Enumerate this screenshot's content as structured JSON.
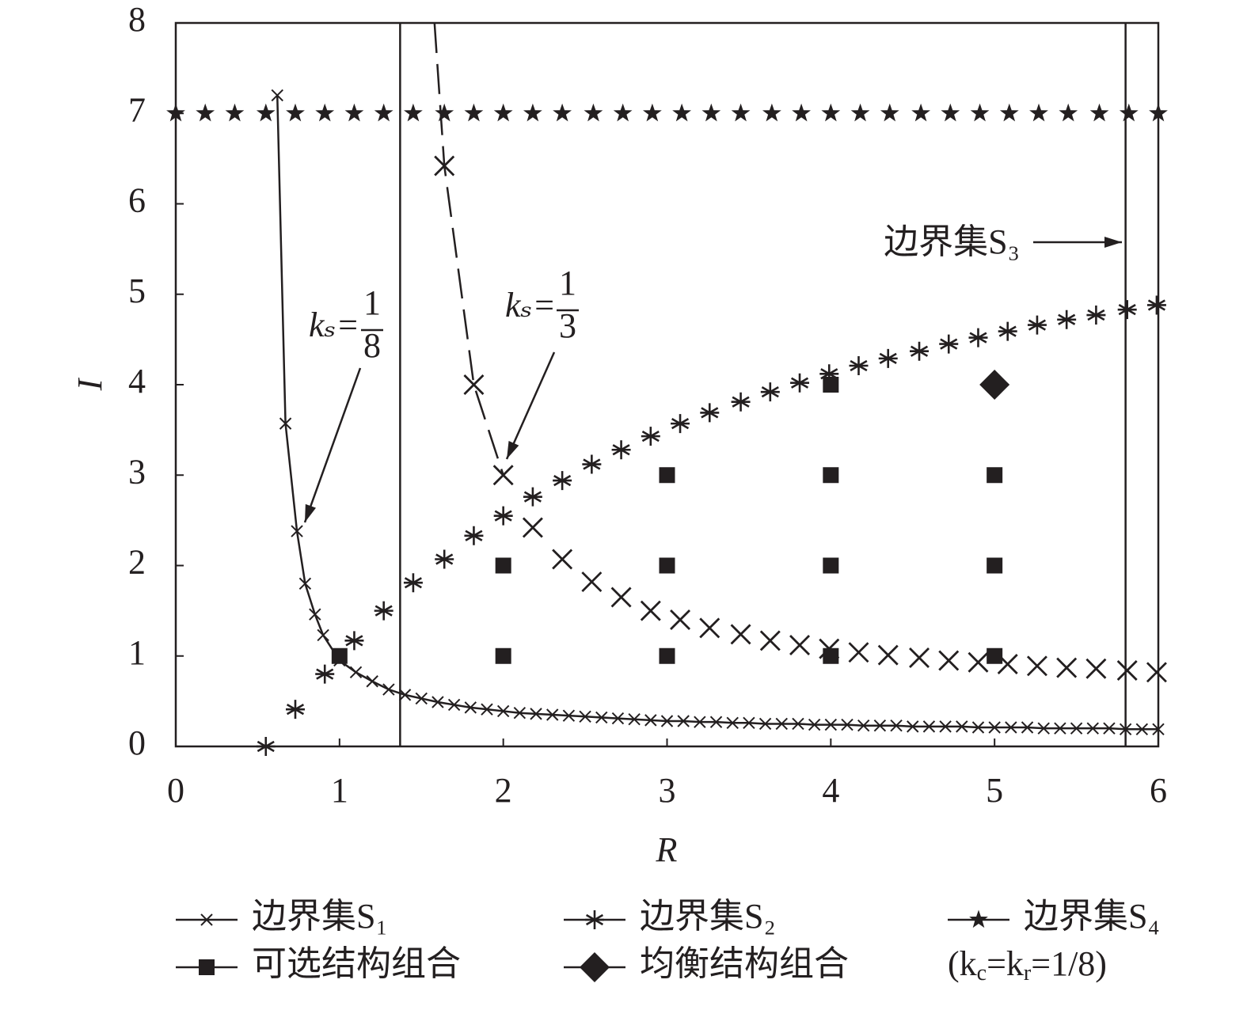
{
  "chart_data": {
    "type": "scatter",
    "x_label": "R",
    "y_label": "I",
    "xlim": [
      0,
      6
    ],
    "ylim": [
      0,
      8
    ],
    "xticks": [
      0,
      1,
      2,
      3,
      4,
      5,
      6
    ],
    "yticks": [
      0,
      1,
      2,
      3,
      4,
      5,
      6,
      7,
      8
    ],
    "color": "#231f20",
    "vlines": [
      1.37,
      5.8
    ],
    "series": [
      {
        "name": "边界集S₁",
        "marker": "x-small",
        "line": "solid",
        "x": [
          0.62,
          0.67,
          0.74,
          0.79,
          0.85,
          0.9,
          1.0,
          1.1,
          1.2,
          1.3,
          1.4,
          1.5,
          1.6,
          1.7,
          1.8,
          1.9,
          2.0,
          2.1,
          2.2,
          2.3,
          2.4,
          2.5,
          2.6,
          2.7,
          2.8,
          2.9,
          3.0,
          3.1,
          3.2,
          3.3,
          3.4,
          3.5,
          3.6,
          3.7,
          3.8,
          3.9,
          4.0,
          4.1,
          4.2,
          4.3,
          4.4,
          4.5,
          4.6,
          4.7,
          4.8,
          4.9,
          5.0,
          5.1,
          5.2,
          5.3,
          5.4,
          5.5,
          5.6,
          5.7,
          5.8,
          5.9,
          6.0
        ],
        "values": [
          7.2,
          3.57,
          2.38,
          1.8,
          1.46,
          1.23,
          0.95,
          0.82,
          0.72,
          0.63,
          0.57,
          0.53,
          0.49,
          0.46,
          0.43,
          0.41,
          0.39,
          0.37,
          0.36,
          0.35,
          0.34,
          0.33,
          0.32,
          0.31,
          0.3,
          0.29,
          0.28,
          0.28,
          0.27,
          0.27,
          0.26,
          0.26,
          0.25,
          0.25,
          0.25,
          0.24,
          0.24,
          0.24,
          0.23,
          0.23,
          0.23,
          0.22,
          0.22,
          0.22,
          0.22,
          0.21,
          0.21,
          0.21,
          0.21,
          0.2,
          0.2,
          0.2,
          0.2,
          0.2,
          0.19,
          0.19,
          0.19
        ]
      },
      {
        "marker": "x-large",
        "x": [
          1.64,
          1.82,
          2.0,
          2.18,
          2.36,
          2.54,
          2.72,
          2.9,
          3.08,
          3.26,
          3.45,
          3.63,
          3.81,
          3.99,
          4.17,
          4.35,
          4.54,
          4.72,
          4.9,
          5.08,
          5.26,
          5.44,
          5.62,
          5.81,
          5.99
        ],
        "values": [
          6.42,
          4.0,
          3.0,
          2.42,
          2.07,
          1.82,
          1.65,
          1.5,
          1.4,
          1.31,
          1.24,
          1.17,
          1.12,
          1.08,
          1.04,
          1.01,
          0.98,
          0.95,
          0.93,
          0.91,
          0.89,
          0.87,
          0.86,
          0.84,
          0.82
        ]
      },
      {
        "line": "dashed",
        "x": [
          1.58,
          1.64,
          1.82,
          2.0
        ],
        "values": [
          8,
          6.42,
          4.0,
          3.0
        ]
      },
      {
        "name": "边界集S₂",
        "marker": "asterisk",
        "x": [
          0.55,
          0.73,
          0.91,
          1.09,
          1.27,
          1.45,
          1.64,
          1.82,
          2.0,
          2.18,
          2.36,
          2.54,
          2.72,
          2.9,
          3.08,
          3.26,
          3.45,
          3.63,
          3.81,
          3.99,
          4.17,
          4.35,
          4.54,
          4.72,
          4.9,
          5.08,
          5.26,
          5.44,
          5.62,
          5.81,
          5.99
        ],
        "values": [
          0,
          0.41,
          0.8,
          1.17,
          1.5,
          1.81,
          2.07,
          2.33,
          2.55,
          2.76,
          2.94,
          3.12,
          3.28,
          3.43,
          3.57,
          3.69,
          3.81,
          3.92,
          4.02,
          4.12,
          4.21,
          4.29,
          4.37,
          4.45,
          4.52,
          4.59,
          4.66,
          4.72,
          4.77,
          4.83,
          4.88
        ]
      },
      {
        "name": "边界集S₄",
        "marker": "star",
        "x": [
          0,
          0.18,
          0.36,
          0.55,
          0.73,
          0.91,
          1.09,
          1.27,
          1.45,
          1.64,
          1.82,
          2.0,
          2.18,
          2.36,
          2.55,
          2.73,
          2.91,
          3.09,
          3.27,
          3.45,
          3.64,
          3.82,
          4.0,
          4.18,
          4.36,
          4.55,
          4.73,
          4.91,
          5.09,
          5.27,
          5.45,
          5.64,
          5.82,
          6.0
        ],
        "values": [
          7,
          7,
          7,
          7,
          7,
          7,
          7,
          7,
          7,
          7,
          7,
          7,
          7,
          7,
          7,
          7,
          7,
          7,
          7,
          7,
          7,
          7,
          7,
          7,
          7,
          7,
          7,
          7,
          7,
          7,
          7,
          7,
          7,
          7
        ]
      },
      {
        "name": "可选结构组合",
        "marker": "square",
        "x": [
          1,
          2,
          2,
          3,
          3,
          3,
          4,
          4,
          4,
          4,
          5,
          5,
          5
        ],
        "values": [
          1,
          1,
          2,
          1,
          2,
          3,
          1,
          2,
          3,
          4,
          1,
          2,
          3
        ]
      },
      {
        "name": "均衡结构组合",
        "marker": "diamond",
        "x": [
          5
        ],
        "values": [
          4
        ]
      }
    ],
    "legend_note": [
      "(k",
      "c",
      "=k",
      "r",
      "=1/8)"
    ],
    "annotations": [
      {
        "text": "kₛ=",
        "numerator": "1",
        "denominator": "8"
      },
      {
        "text": "kₛ=",
        "numerator": "1",
        "denominator": "3"
      },
      {
        "text": "边界集S₃"
      }
    ]
  }
}
